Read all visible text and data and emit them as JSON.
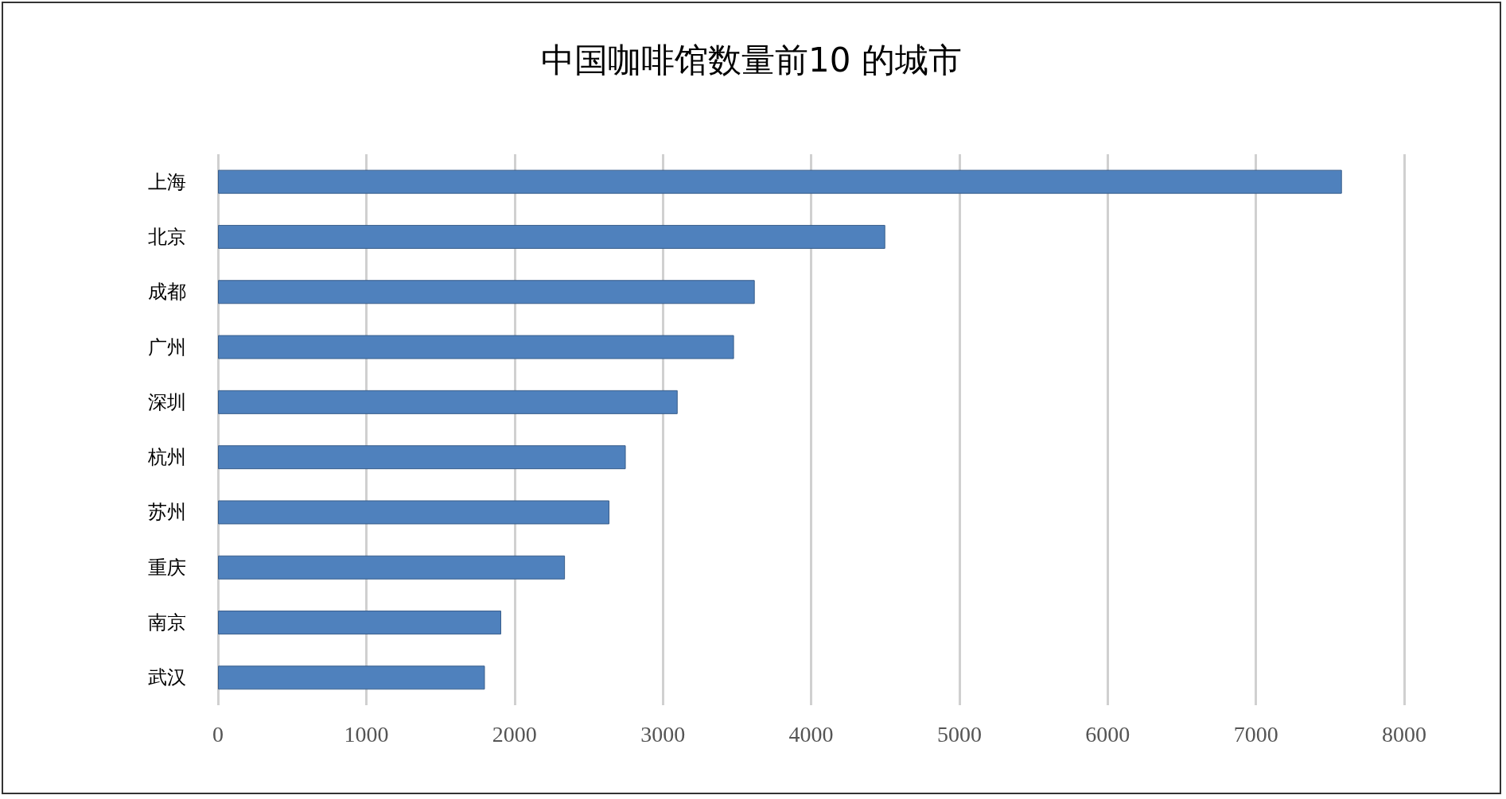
{
  "chart_data": {
    "type": "bar",
    "orientation": "horizontal",
    "title": "中国咖啡馆数量前10 的城市",
    "categories": [
      "上海",
      "北京",
      "成都",
      "广州",
      "深圳",
      "杭州",
      "苏州",
      "重庆",
      "南京",
      "武汉"
    ],
    "values": [
      7580,
      4500,
      3620,
      3480,
      3100,
      2750,
      2640,
      2340,
      1910,
      1800
    ],
    "color": "#4f81bd",
    "xlim": [
      0,
      8000
    ],
    "xticks": [
      0,
      1000,
      2000,
      3000,
      4000,
      5000,
      6000,
      7000,
      8000
    ],
    "grid": "x"
  }
}
